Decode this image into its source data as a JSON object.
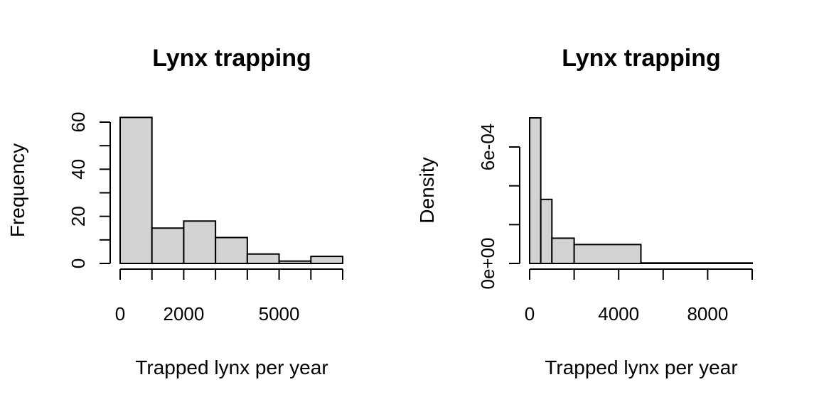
{
  "chart_data": [
    {
      "type": "bar",
      "subtype": "histogram",
      "title": "Lynx trapping",
      "xlabel": "Trapped lynx per year",
      "ylabel": "Frequency",
      "bin_edges": [
        0,
        1000,
        2000,
        3000,
        4000,
        5000,
        6000,
        7000
      ],
      "values": [
        62,
        15,
        18,
        11,
        4,
        1,
        3
      ],
      "xlim": [
        0,
        7000
      ],
      "ylim": [
        0,
        60
      ],
      "x_ticks": [
        0,
        1000,
        2000,
        3000,
        4000,
        5000,
        6000,
        7000
      ],
      "x_tick_labels": [
        "0",
        "",
        "2000",
        "",
        "",
        "5000",
        "",
        ""
      ],
      "y_ticks": [
        0,
        10,
        20,
        30,
        40,
        50,
        60
      ],
      "y_tick_labels": [
        "0",
        "",
        "20",
        "",
        "40",
        "",
        "60"
      ],
      "bar_color": "#d3d3d3",
      "grid": false
    },
    {
      "type": "bar",
      "subtype": "histogram",
      "title": "Lynx trapping",
      "xlabel": "Trapped lynx per year",
      "ylabel": "Density",
      "bin_edges": [
        0,
        500,
        1000,
        2000,
        5000,
        10000
      ],
      "values": [
        0.00075,
        0.00033,
        0.00013,
        9.75e-05,
        2.5e-06
      ],
      "xlim": [
        0,
        10000
      ],
      "ylim": [
        0,
        0.0006
      ],
      "x_ticks": [
        0,
        2000,
        4000,
        6000,
        8000,
        10000
      ],
      "x_tick_labels": [
        "0",
        "",
        "4000",
        "",
        "8000",
        ""
      ],
      "y_ticks": [
        0,
        0.0002,
        0.0004,
        0.0006
      ],
      "y_tick_labels": [
        "0e+00",
        "",
        "",
        "6e-04"
      ],
      "bar_color": "#d3d3d3",
      "grid": false
    }
  ]
}
